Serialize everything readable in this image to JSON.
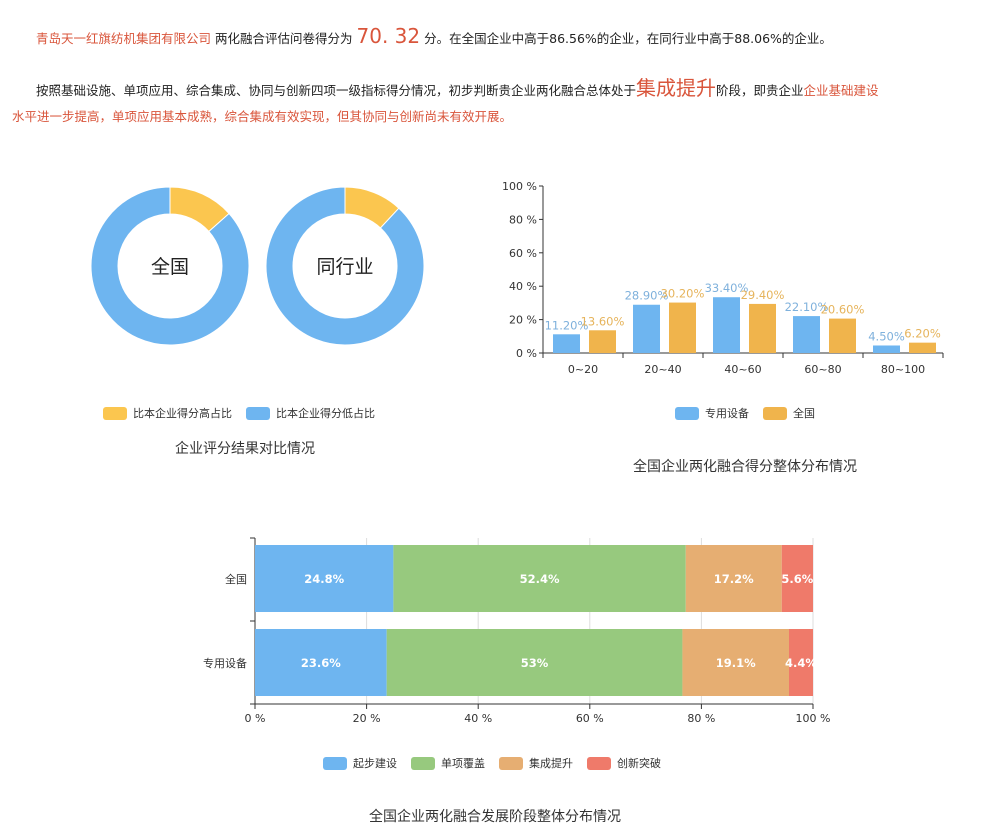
{
  "summary": {
    "company": "青岛天一红旗纺机集团有限公司",
    "p1a": "两化融合评估问卷得分为",
    "score": "70. 32",
    "p1b": "分。在全国企业中高于86.56%的企业，在同行业中高于88.06%的企业。",
    "p2a": "按照基础设施、单项应用、综合集成、协同与创新四项一级指标得分情况，初步判断贵企业两化融合总体处于",
    "stage": "集成提升",
    "p2b": "阶段，即贵企业",
    "p2c": "企业基础建设",
    "p3": "水平进一步提高，单项应用基本成熟，综合集成有效实现，但其协同与创新尚未有效开展。"
  },
  "colors": {
    "blue": "#6eb5f0",
    "yellow": "#fbc64f",
    "orange": "#f0b44c",
    "green": "#97c97e",
    "tan": "#e6ae72",
    "red": "#ef7a6a",
    "text_red": "#d9553b"
  },
  "chart_data": [
    {
      "type": "pie",
      "title": "企业评分结果对比情况",
      "legend": [
        "比本企业得分高占比",
        "比本企业得分低占比"
      ],
      "legend_position": "bottom",
      "donuts": [
        {
          "label": "全国",
          "values": [
            13.44,
            86.56
          ]
        },
        {
          "label": "同行业",
          "values": [
            11.94,
            88.06
          ]
        }
      ]
    },
    {
      "type": "bar",
      "title": "全国企业两化融合得分整体分布情况",
      "categories": [
        "0~20",
        "20~40",
        "40~60",
        "60~80",
        "80~100"
      ],
      "yticks": [
        "0 %",
        "20 %",
        "40 %",
        "60 %",
        "80 %",
        "100 %"
      ],
      "ylim": [
        0,
        100
      ],
      "legend_position": "bottom",
      "series": [
        {
          "name": "专用设备",
          "values": [
            11.2,
            28.9,
            33.4,
            22.1,
            4.5
          ],
          "labels": [
            "11.20%",
            "28.90%",
            "33.40%",
            "22.10%",
            "4.50%"
          ]
        },
        {
          "name": "全国",
          "values": [
            13.6,
            30.2,
            29.4,
            20.6,
            6.2
          ],
          "labels": [
            "13.60%",
            "30.20%",
            "29.40%",
            "20.60%",
            "6.20%"
          ]
        }
      ]
    },
    {
      "type": "bar",
      "orientation": "horizontal",
      "stacked": true,
      "title": "全国企业两化融合发展阶段整体分布情况",
      "categories": [
        "全国",
        "专用设备"
      ],
      "xticks": [
        "0 %",
        "20 %",
        "40 %",
        "60 %",
        "80 %",
        "100 %"
      ],
      "xlim": [
        0,
        100
      ],
      "grid": true,
      "legend_position": "bottom",
      "series": [
        {
          "name": "起步建设",
          "values": [
            24.8,
            23.6
          ],
          "labels": [
            "24.8%",
            "23.6%"
          ]
        },
        {
          "name": "单项覆盖",
          "values": [
            52.4,
            53
          ],
          "labels": [
            "52.4%",
            "53%"
          ]
        },
        {
          "name": "集成提升",
          "values": [
            17.2,
            19.1
          ],
          "labels": [
            "17.2%",
            "19.1%"
          ]
        },
        {
          "name": "创新突破",
          "values": [
            5.6,
            4.4
          ],
          "labels": [
            "5.6%",
            "4.4%"
          ]
        }
      ]
    }
  ]
}
